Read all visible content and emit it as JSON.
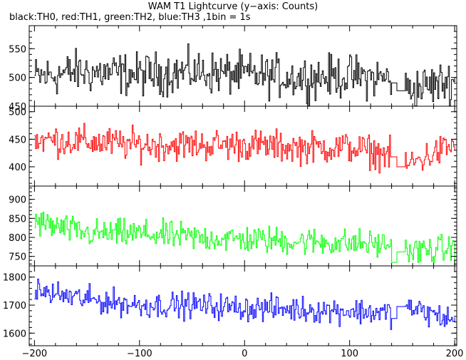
{
  "title": "WAM T1 Lightcurve (y−axis: Counts)",
  "subtitle": "black:TH0, red:TH1, green:TH2, blue:TH3 ,1bin = 1s",
  "chart_data": {
    "type": "line",
    "x_range": [
      -205,
      202
    ],
    "x_ticks": [
      -200,
      -100,
      0,
      100,
      200
    ],
    "x_tick_labels": [
      "−200",
      "−100",
      "0",
      "100",
      "200"
    ],
    "gap": [
      140,
      153
    ],
    "series": [
      {
        "name": "TH0",
        "color": "#000000",
        "ylim": [
          450,
          590
        ],
        "yticks": [
          450,
          500,
          550
        ],
        "mean_start": 505,
        "mean_end": 498,
        "noise": 28,
        "gap_level": 477,
        "keypoints": [
          [
            -200,
            500
          ],
          [
            -160,
            510
          ],
          [
            -100,
            505
          ],
          [
            -50,
            510
          ],
          [
            0,
            505
          ],
          [
            50,
            500
          ],
          [
            100,
            502
          ],
          [
            140,
            498
          ],
          [
            150,
            477
          ],
          [
            200,
            495
          ]
        ]
      },
      {
        "name": "TH1",
        "color": "#ff0000",
        "ylim": [
          365,
          510
        ],
        "yticks": [
          400,
          450,
          500
        ],
        "mean_start": 448,
        "mean_end": 435,
        "noise": 22,
        "gap_level": 400,
        "keypoints": [
          [
            -200,
            450
          ],
          [
            -150,
            445
          ],
          [
            -100,
            440
          ],
          [
            -50,
            440
          ],
          [
            0,
            440
          ],
          [
            50,
            435
          ],
          [
            100,
            435
          ],
          [
            140,
            420
          ],
          [
            150,
            400
          ],
          [
            200,
            440
          ]
        ]
      },
      {
        "name": "TH2",
        "color": "#00ff00",
        "ylim": [
          725,
          935
        ],
        "yticks": [
          750,
          800,
          850,
          900
        ],
        "mean_start": 840,
        "mean_end": 770,
        "noise": 28,
        "gap_level": 762,
        "keypoints": [
          [
            -200,
            840
          ],
          [
            -150,
            810
          ],
          [
            -100,
            810
          ],
          [
            -50,
            800
          ],
          [
            0,
            795
          ],
          [
            50,
            790
          ],
          [
            100,
            785
          ],
          [
            140,
            780
          ],
          [
            150,
            762
          ],
          [
            200,
            770
          ]
        ]
      },
      {
        "name": "TH3",
        "color": "#0000ff",
        "ylim": [
          1555,
          1840
        ],
        "yticks": [
          1600,
          1700,
          1800
        ],
        "mean_start": 1745,
        "mean_end": 1650,
        "noise": 35,
        "gap_level": 1695,
        "keypoints": [
          [
            -200,
            1750
          ],
          [
            -150,
            1720
          ],
          [
            -100,
            1700
          ],
          [
            -50,
            1700
          ],
          [
            0,
            1690
          ],
          [
            50,
            1685
          ],
          [
            100,
            1680
          ],
          [
            140,
            1670
          ],
          [
            150,
            1695
          ],
          [
            200,
            1645
          ]
        ]
      }
    ]
  }
}
